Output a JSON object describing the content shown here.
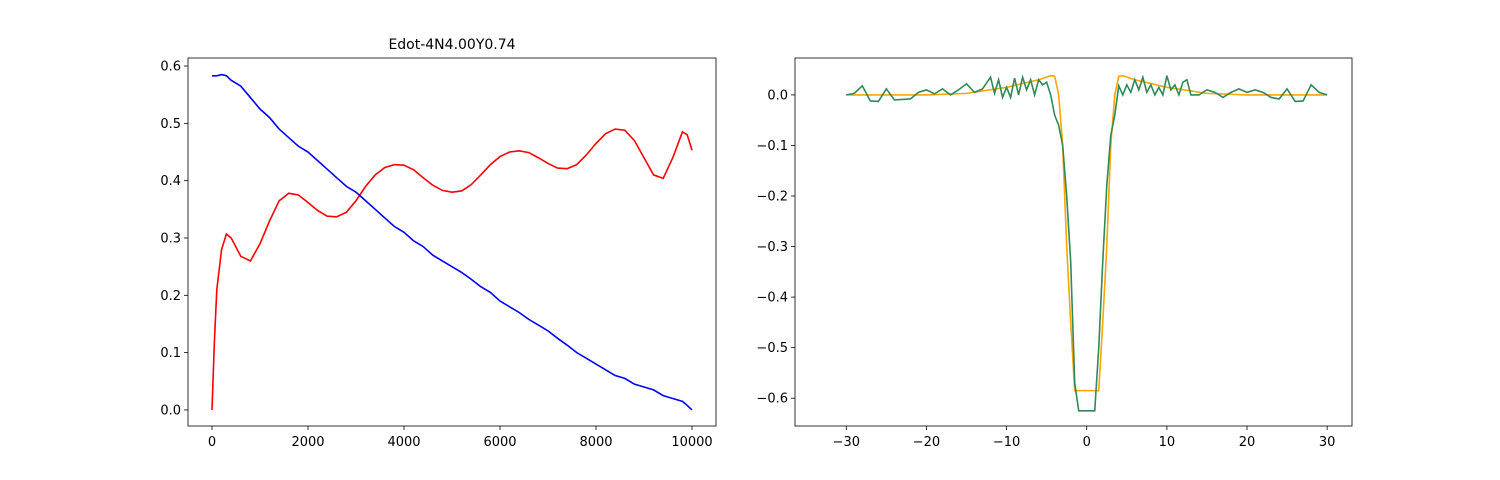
{
  "chart_data": [
    {
      "type": "line",
      "title": "Edot-4N4.00Y0.74",
      "x": [
        0,
        50,
        100,
        200,
        300,
        400,
        600,
        800,
        1000,
        1200,
        1400,
        1600,
        1800,
        2000,
        2200,
        2400,
        2600,
        2800,
        3000,
        3200,
        3400,
        3600,
        3800,
        4000,
        4200,
        4400,
        4600,
        4800,
        5000,
        5200,
        5400,
        5600,
        5800,
        6000,
        6200,
        6400,
        6600,
        6800,
        7000,
        7200,
        7400,
        7600,
        7800,
        8000,
        8200,
        8400,
        8600,
        8800,
        9000,
        9200,
        9400,
        9600,
        9800,
        9900,
        10000
      ],
      "series": [
        {
          "color": "red",
          "values": [
            0,
            0.12,
            0.21,
            0.28,
            0.307,
            0.3,
            0.268,
            0.26,
            0.29,
            0.33,
            0.365,
            0.378,
            0.375,
            0.362,
            0.348,
            0.338,
            0.337,
            0.345,
            0.365,
            0.39,
            0.41,
            0.423,
            0.428,
            0.427,
            0.419,
            0.405,
            0.392,
            0.383,
            0.38,
            0.382,
            0.393,
            0.41,
            0.428,
            0.442,
            0.45,
            0.452,
            0.449,
            0.44,
            0.43,
            0.422,
            0.421,
            0.428,
            0.445,
            0.465,
            0.482,
            0.49,
            0.488,
            0.47,
            0.44,
            0.41,
            0.404,
            0.44,
            0.485,
            0.48,
            0.453
          ]
        },
        {
          "color": "blue",
          "values": [
            0.583,
            0.583,
            0.583,
            0.585,
            0.583,
            0.575,
            0.565,
            0.545,
            0.525,
            0.51,
            0.49,
            0.475,
            0.46,
            0.45,
            0.435,
            0.42,
            0.405,
            0.39,
            0.38,
            0.365,
            0.35,
            0.335,
            0.32,
            0.31,
            0.295,
            0.285,
            0.27,
            0.26,
            0.25,
            0.24,
            0.228,
            0.215,
            0.205,
            0.19,
            0.18,
            0.17,
            0.158,
            0.148,
            0.138,
            0.125,
            0.113,
            0.1,
            0.09,
            0.08,
            0.07,
            0.06,
            0.055,
            0.045,
            0.04,
            0.035,
            0.025,
            0.02,
            0.015,
            0.008,
            0
          ]
        }
      ],
      "xlim": [
        -500,
        10500
      ],
      "xticks": [
        0,
        2000,
        4000,
        6000,
        8000,
        10000
      ],
      "ylim": [
        -0.028,
        0.614
      ],
      "yticks": [
        {
          "value": 0,
          "label": "0.0"
        },
        0.1,
        0.2,
        0.3,
        0.4,
        0.5,
        0.6
      ]
    },
    {
      "type": "line",
      "series": [
        {
          "color": "orange",
          "x": [
            -30,
            -20,
            -15,
            -10,
            -6,
            -4.5,
            -4,
            -3.5,
            -3,
            -2.5,
            -2,
            -1.5,
            1.5,
            2,
            2.5,
            3,
            3.5,
            4,
            4.5,
            6,
            10,
            15,
            20,
            30
          ],
          "values": [
            0,
            0,
            0.003,
            0.015,
            0.03,
            0.038,
            0.037,
            0,
            -0.1,
            -0.3,
            -0.45,
            -0.585,
            -0.585,
            -0.45,
            -0.3,
            -0.1,
            0,
            0.037,
            0.038,
            0.03,
            0.015,
            0.003,
            0,
            0
          ]
        },
        {
          "color": "#2e8b57",
          "x": [
            -30,
            -29,
            -28,
            -27,
            -26,
            -25,
            -24,
            -22,
            -21,
            -20,
            -19,
            -18,
            -17,
            -16,
            -15,
            -14,
            -13,
            -12,
            -11.5,
            -11,
            -10.5,
            -10,
            -9.5,
            -9,
            -8.5,
            -8,
            -7.5,
            -7,
            -6.5,
            -6,
            -5.5,
            -5,
            -4.5,
            -4,
            -3.5,
            -3,
            -2.5,
            -2,
            -1.5,
            -1,
            1,
            1.5,
            2,
            2.5,
            3,
            3.5,
            4,
            4.5,
            5,
            5.5,
            6,
            6.5,
            7,
            7.5,
            8,
            8.5,
            9,
            9.5,
            10,
            10.5,
            11,
            11.5,
            12,
            12.5,
            13,
            14,
            15,
            16,
            17,
            18,
            19,
            20,
            21,
            22,
            23,
            24,
            25,
            26,
            27,
            28,
            29,
            30
          ],
          "values": [
            0,
            0.003,
            0.018,
            -0.012,
            -0.013,
            0.012,
            -0.01,
            -0.008,
            0.005,
            0.01,
            0.002,
            0.012,
            0,
            0.01,
            0.022,
            0.005,
            0.012,
            0.035,
            0.003,
            0.03,
            -0.005,
            0.015,
            -0.005,
            0.033,
            0,
            0.035,
            0.01,
            0.03,
            0,
            0.03,
            0.02,
            0.025,
            0,
            -0.04,
            -0.06,
            -0.1,
            -0.2,
            -0.33,
            -0.57,
            -0.625,
            -0.625,
            -0.5,
            -0.33,
            -0.18,
            -0.08,
            -0.04,
            0.018,
            0,
            0.02,
            0.005,
            0.03,
            0.01,
            0.035,
            0.005,
            0.02,
            0,
            0.015,
            0,
            0.038,
            0.01,
            0.02,
            0,
            0.025,
            0.03,
            0,
            0,
            0.01,
            0.005,
            -0.005,
            0.005,
            0.012,
            0.005,
            0.01,
            0.005,
            -0.005,
            -0.008,
            0.012,
            -0.013,
            -0.012,
            0.02,
            0.005,
            0
          ]
        }
      ],
      "xlim": [
        -36.4,
        33.1
      ],
      "xticks": [
        {
          "value": -30,
          "label": "−30"
        },
        {
          "value": -20,
          "label": "−20"
        },
        {
          "value": -10,
          "label": "−10"
        },
        0,
        10,
        20,
        30
      ],
      "ylim": [
        -0.655,
        0.073
      ],
      "yticks": [
        {
          "value": 0,
          "label": "0.0"
        },
        {
          "value": -0.1,
          "label": "−0.1"
        },
        {
          "value": -0.2,
          "label": "−0.2"
        },
        {
          "value": -0.3,
          "label": "−0.3"
        },
        {
          "value": -0.4,
          "label": "−0.4"
        },
        {
          "value": -0.5,
          "label": "−0.5"
        },
        {
          "value": -0.6,
          "label": "−0.6"
        }
      ]
    }
  ]
}
